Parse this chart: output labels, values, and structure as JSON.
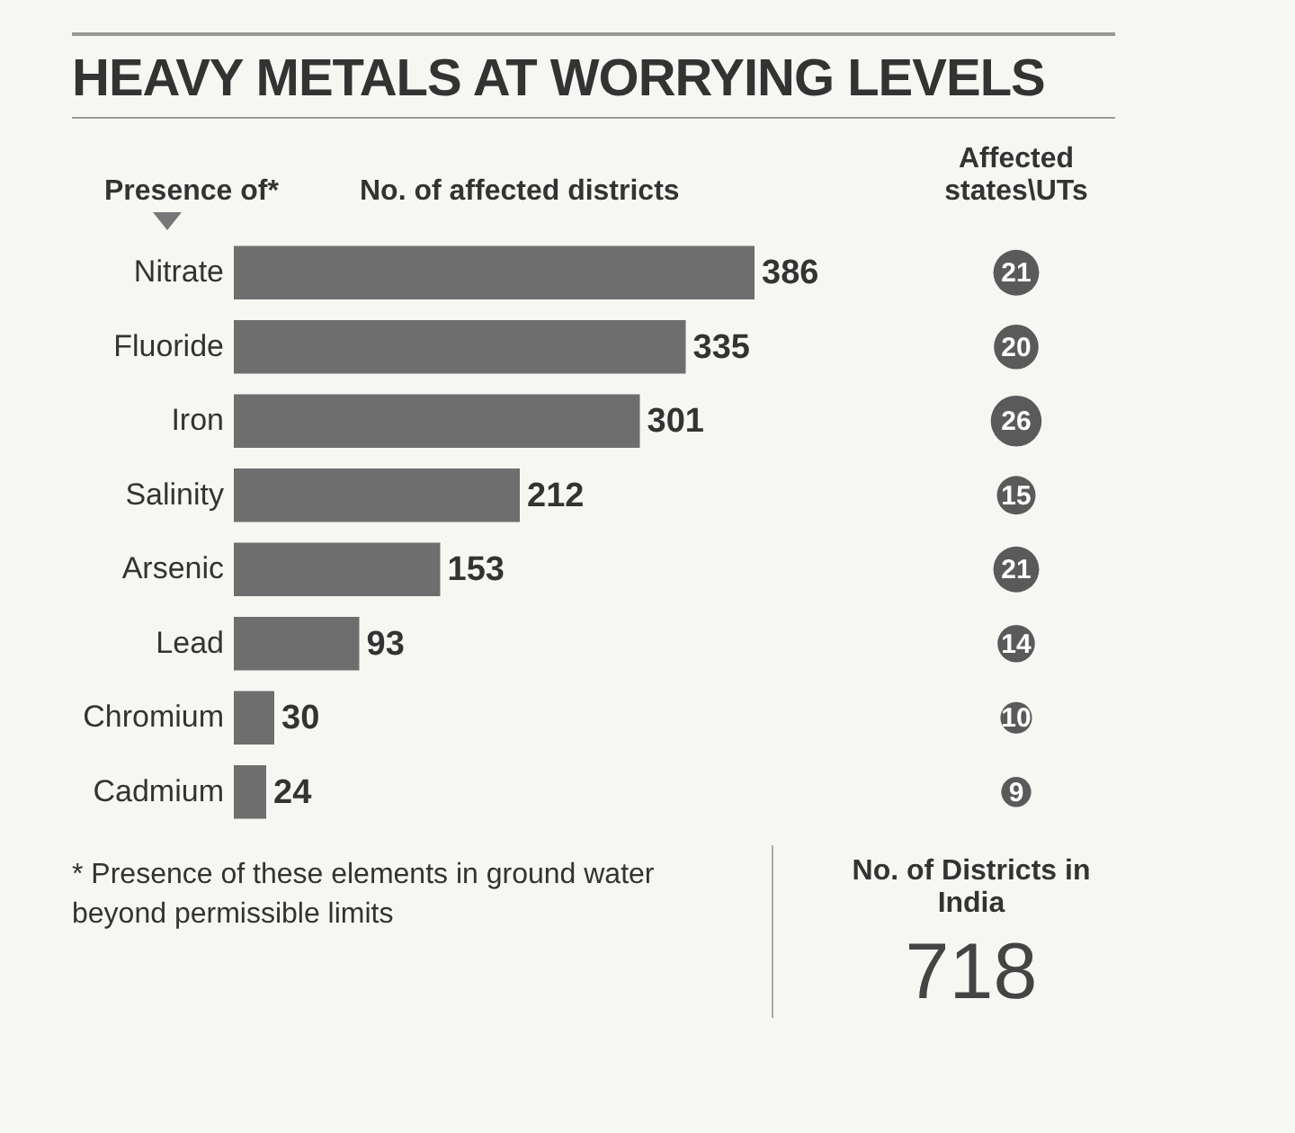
{
  "chart_data": [
    {
      "type": "bar",
      "orientation": "horizontal",
      "title": "HEAVY METALS AT WORRYING LEVELS",
      "ylabel": "Presence of*",
      "xlabel": "No. of affected districts",
      "categories": [
        "Nitrate",
        "Fluoride",
        "Iron",
        "Salinity",
        "Arsenic",
        "Lead",
        "Chromium",
        "Cadmium"
      ],
      "values": [
        386,
        335,
        301,
        212,
        153,
        93,
        30,
        24
      ],
      "color": "#6e6e6e",
      "data_labels": true,
      "tick_labels": "y",
      "annotations": [
        "* Presence of these elements in ground water beyond permissible limits"
      ]
    },
    {
      "type": "other",
      "title": "Affected states\\UTs",
      "values": [
        21,
        20,
        26,
        15,
        21,
        14,
        10,
        9
      ],
      "color": "#5a5a5a",
      "data_labels": true
    },
    {
      "type": "other",
      "title": "No. of Districts in India",
      "values": [
        718
      ],
      "data_labels": true
    }
  ]
}
